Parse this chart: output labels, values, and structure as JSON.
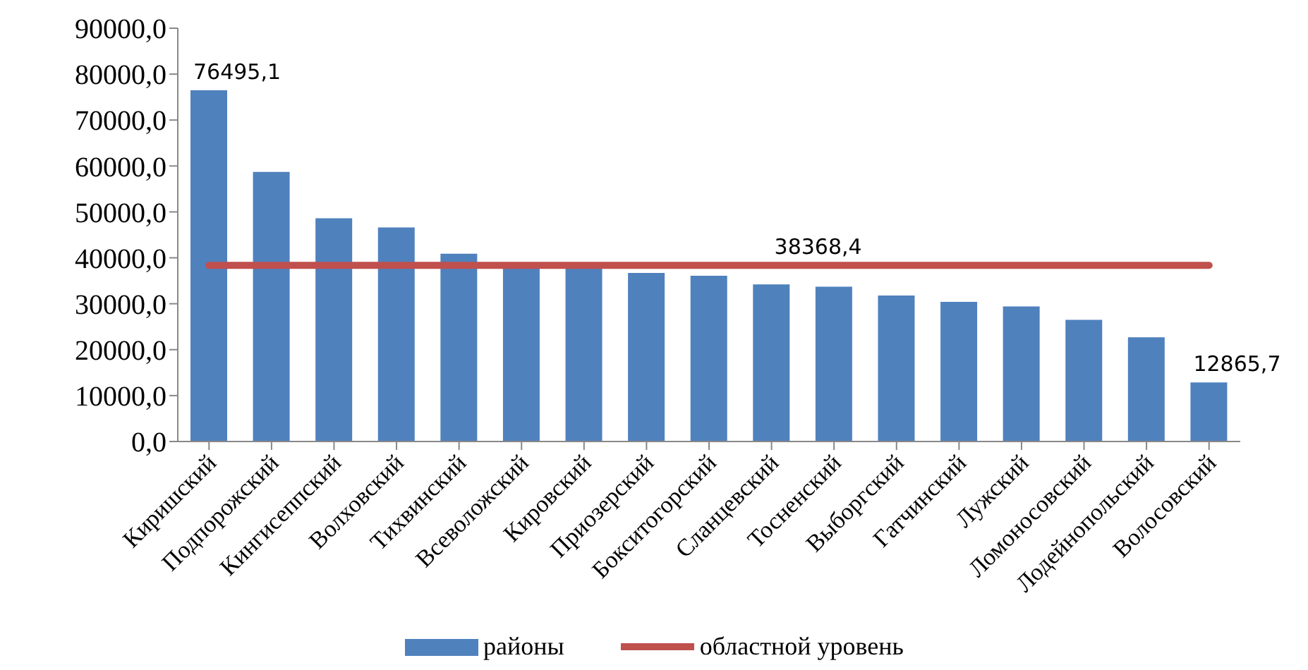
{
  "chart_data": {
    "type": "bar",
    "categories": [
      "Киришский",
      "Подпорожский",
      "Кингисеппский",
      "Волховский",
      "Тихвинский",
      "Всеволожский",
      "Кировский",
      "Приозерский",
      "Бокситогорский",
      "Сланцевский",
      "Тосненский",
      "Выборгский",
      "Гатчинский",
      "Лужский",
      "Ломоносовский",
      "Лодейнопольский",
      "Волосовский"
    ],
    "series": [
      {
        "name": "районы",
        "color": "#4f81bd",
        "values": [
          76495.1,
          58700,
          48600,
          46600,
          40900,
          38400,
          38000,
          36700,
          36100,
          34200,
          33700,
          31800,
          30400,
          29400,
          26500,
          22700,
          12865.7
        ],
        "value_labels": [
          "76495,1",
          null,
          null,
          null,
          null,
          null,
          null,
          null,
          null,
          null,
          null,
          null,
          null,
          null,
          null,
          null,
          "12865,7"
        ]
      },
      {
        "name": "областной уровень",
        "type": "line",
        "color": "#c0504d",
        "values": [
          38368.4,
          38368.4,
          38368.4,
          38368.4,
          38368.4,
          38368.4,
          38368.4,
          38368.4,
          38368.4,
          38368.4,
          38368.4,
          38368.4,
          38368.4,
          38368.4,
          38368.4,
          38368.4,
          38368.4
        ],
        "value_labels": [
          null,
          null,
          null,
          null,
          null,
          null,
          null,
          null,
          null,
          "38368,4",
          null,
          null,
          null,
          null,
          null,
          null,
          null
        ]
      }
    ],
    "ylim": [
      0,
      90000
    ],
    "yticks": [
      {
        "value": 0,
        "label": "0,0"
      },
      {
        "value": 10000,
        "label": "10000,0"
      },
      {
        "value": 20000,
        "label": "20000,0"
      },
      {
        "value": 30000,
        "label": "30000,0"
      },
      {
        "value": 40000,
        "label": "40000,0"
      },
      {
        "value": 50000,
        "label": "50000,0"
      },
      {
        "value": 60000,
        "label": "60000,0"
      },
      {
        "value": 70000,
        "label": "70000,0"
      },
      {
        "value": 80000,
        "label": "80000,0"
      },
      {
        "value": 90000,
        "label": "90000,0"
      }
    ],
    "grid": false,
    "legend": "bottom",
    "marker": "none",
    "line_style": "solid"
  }
}
